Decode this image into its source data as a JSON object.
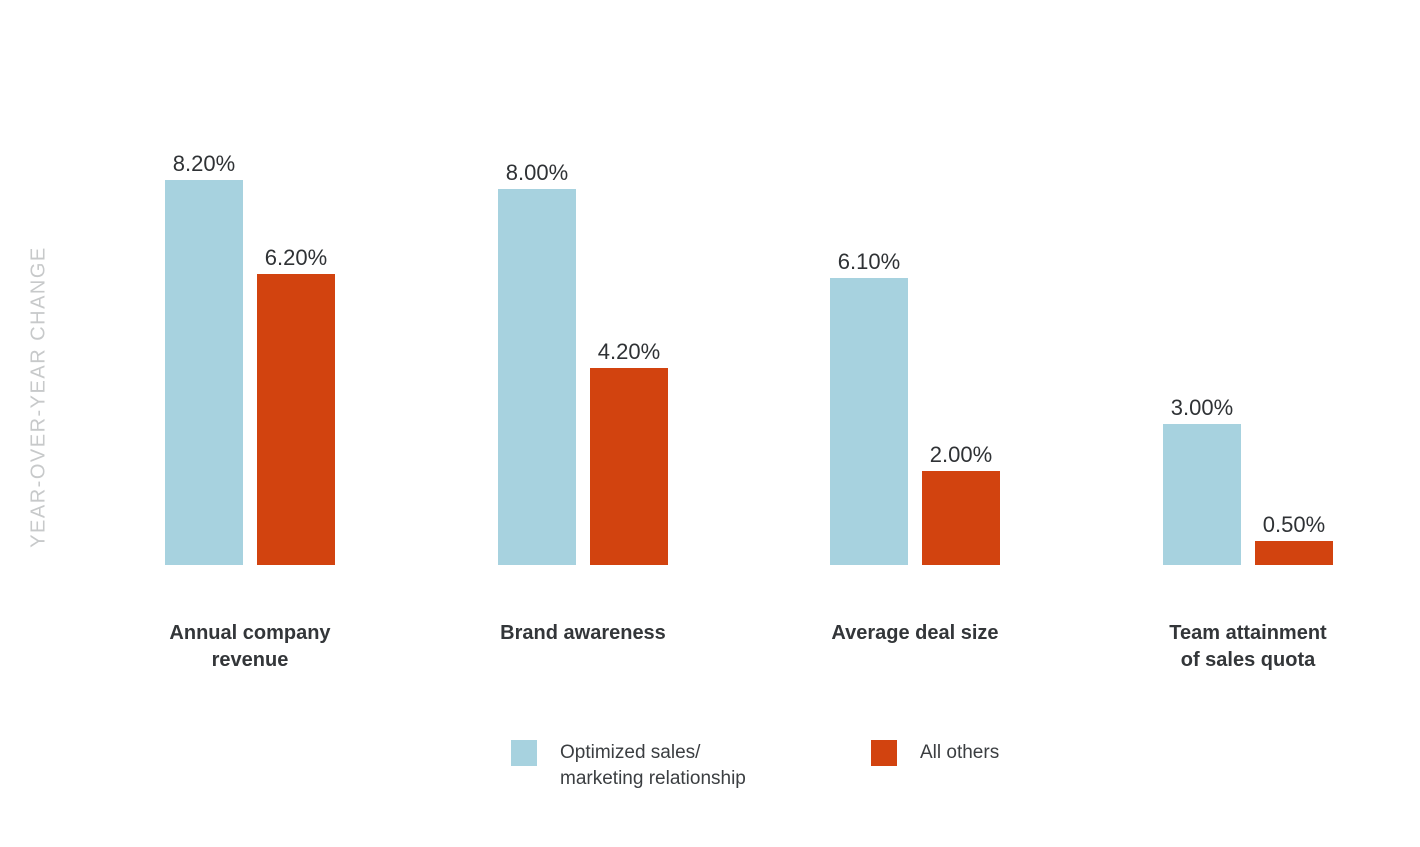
{
  "chart_data": {
    "type": "bar",
    "categories": [
      "Annual company revenue",
      "Brand awareness",
      "Average deal size",
      "Team attainment of sales quota"
    ],
    "category_display": [
      "Annual company\nrevenue",
      "Brand awareness",
      "Average deal size",
      "Team attainment\nof sales quota"
    ],
    "series": [
      {
        "name": "Optimized sales/marketing relationship",
        "values": [
          8.2,
          8.0,
          6.1,
          3.0
        ],
        "data_labels": [
          "8.20%",
          "8.00%",
          "6.10%",
          "3.00%"
        ],
        "color": "#a7d2df"
      },
      {
        "name": "All others",
        "values": [
          6.2,
          4.2,
          2.0,
          0.5
        ],
        "data_labels": [
          "6.20%",
          "4.20%",
          "2.00%",
          "0.50%"
        ],
        "color": "#d2430f"
      }
    ],
    "ylabel": "YEAR-OVER-YEAR CHANGE",
    "xlabel": "",
    "value_axis_visible": false,
    "grid": false,
    "legend_position": "bottom",
    "legend": [
      {
        "label": "Optimized sales/\nmarketing relationship",
        "color": "#a7d2df"
      },
      {
        "label": "All others",
        "color": "#d2430f"
      }
    ]
  },
  "colors": {
    "series_optimized": "#a7d2df",
    "series_all_others": "#d2430f",
    "axis_label_gray": "#c7c9ca",
    "value_label_text": "#2f3235",
    "category_label_text": "#333639",
    "legend_text": "#3b3e41",
    "background": "#ffffff"
  }
}
